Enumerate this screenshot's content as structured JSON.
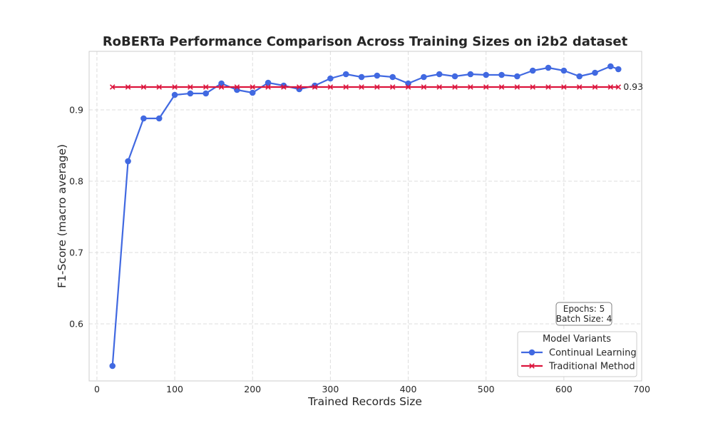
{
  "chart_data": {
    "type": "line",
    "title": "RoBERTa Performance Comparison Across Training Sizes on i2b2 dataset",
    "xlabel": "Trained Records Size",
    "ylabel": "F1-Score (macro average)",
    "xlim": [
      -10,
      700
    ],
    "ylim": [
      0.52,
      0.982
    ],
    "xticks": [
      0,
      100,
      200,
      300,
      400,
      500,
      600,
      700
    ],
    "yticks": [
      0.6,
      0.7,
      0.8,
      0.9
    ],
    "ytick_labels": [
      "0.6",
      "0.7",
      "0.8",
      "0.9"
    ],
    "grid": true,
    "x": [
      20,
      40,
      60,
      80,
      100,
      120,
      140,
      160,
      180,
      200,
      220,
      240,
      260,
      280,
      300,
      320,
      340,
      360,
      380,
      400,
      420,
      440,
      460,
      480,
      500,
      520,
      540,
      560,
      580,
      600,
      620,
      640,
      660,
      670
    ],
    "series": [
      {
        "name": "Continual Learning",
        "color": "#4169e1",
        "marker": "circle",
        "values": [
          0.541,
          0.828,
          0.888,
          0.888,
          0.921,
          0.923,
          0.923,
          0.937,
          0.928,
          0.924,
          0.938,
          0.934,
          0.929,
          0.934,
          0.944,
          0.95,
          0.946,
          0.948,
          0.946,
          0.937,
          0.946,
          0.95,
          0.947,
          0.95,
          0.949,
          0.949,
          0.947,
          0.955,
          0.959,
          0.955,
          0.947,
          0.952,
          0.961,
          0.957
        ]
      },
      {
        "name": "Traditional Method",
        "color": "#dc143c",
        "marker": "x",
        "values": [
          0.932,
          0.932,
          0.932,
          0.932,
          0.932,
          0.932,
          0.932,
          0.932,
          0.932,
          0.932,
          0.932,
          0.932,
          0.932,
          0.932,
          0.932,
          0.932,
          0.932,
          0.932,
          0.932,
          0.932,
          0.932,
          0.932,
          0.932,
          0.932,
          0.932,
          0.932,
          0.932,
          0.932,
          0.932,
          0.932,
          0.932,
          0.932,
          0.932,
          0.932
        ]
      }
    ],
    "end_annotation": "0.93",
    "legend": {
      "title": "Model Variants",
      "placement": "lower-right"
    },
    "info_box": {
      "line1": "Epochs: 5",
      "line2": "Batch Size: 4"
    }
  }
}
